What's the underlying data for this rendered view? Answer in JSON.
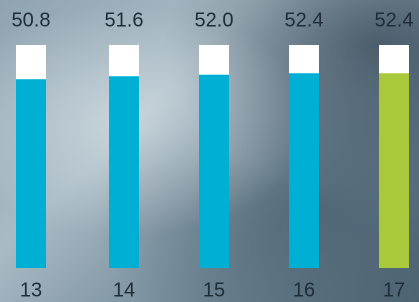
{
  "chart_data": {
    "type": "bar",
    "categories": [
      "13",
      "14",
      "15",
      "16",
      "17"
    ],
    "values": [
      50.8,
      51.6,
      52.0,
      52.4,
      52.4
    ],
    "value_labels": [
      "50.8",
      "51.6",
      "52.0",
      "52.4",
      "52.4"
    ],
    "colors": [
      "#00b0d4",
      "#00b0d4",
      "#00b0d4",
      "#00b0d4",
      "#a9c93b"
    ],
    "ylim": [
      0,
      60
    ]
  }
}
